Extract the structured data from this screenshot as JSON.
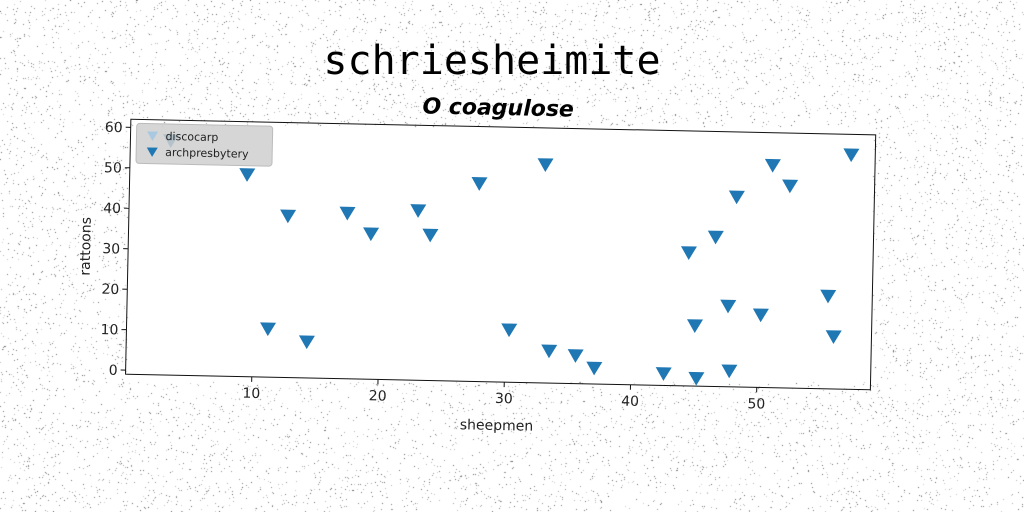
{
  "chart_data": {
    "type": "scatter",
    "suptitle": "schriesheimite",
    "title": "O coagulose",
    "xlabel": "sheepmen",
    "ylabel": "rattoons",
    "xlim": [
      0,
      59
    ],
    "ylim": [
      -1,
      62
    ],
    "xticks": [
      10,
      20,
      30,
      40,
      50
    ],
    "yticks": [
      0,
      10,
      20,
      30,
      40,
      50,
      60
    ],
    "legend_position": "upper left",
    "series": [
      {
        "name": "discocarp",
        "marker": "triangle-down",
        "color": "#a9c9e0",
        "points": []
      },
      {
        "name": "archpresbytery",
        "marker": "triangle-down",
        "color": "#1f77b4",
        "points": [
          [
            3.2,
            57
          ],
          [
            9.3,
            49
          ],
          [
            11.2,
            11
          ],
          [
            12.6,
            39
          ],
          [
            14.3,
            8
          ],
          [
            17.3,
            40
          ],
          [
            19.2,
            35
          ],
          [
            22.9,
            41
          ],
          [
            23.9,
            35
          ],
          [
            27.7,
            48
          ],
          [
            30.3,
            12
          ],
          [
            32.9,
            53
          ],
          [
            33.5,
            7
          ],
          [
            35.6,
            6
          ],
          [
            37.1,
            3
          ],
          [
            42.6,
            2
          ],
          [
            44.4,
            32
          ],
          [
            45.0,
            14
          ],
          [
            45.2,
            1
          ],
          [
            46.5,
            36
          ],
          [
            47.6,
            19
          ],
          [
            47.8,
            3
          ],
          [
            48.1,
            46
          ],
          [
            50.2,
            17
          ],
          [
            50.9,
            54
          ],
          [
            52.3,
            49
          ],
          [
            55.5,
            22
          ],
          [
            56.0,
            12
          ],
          [
            57.1,
            57
          ]
        ]
      }
    ]
  }
}
